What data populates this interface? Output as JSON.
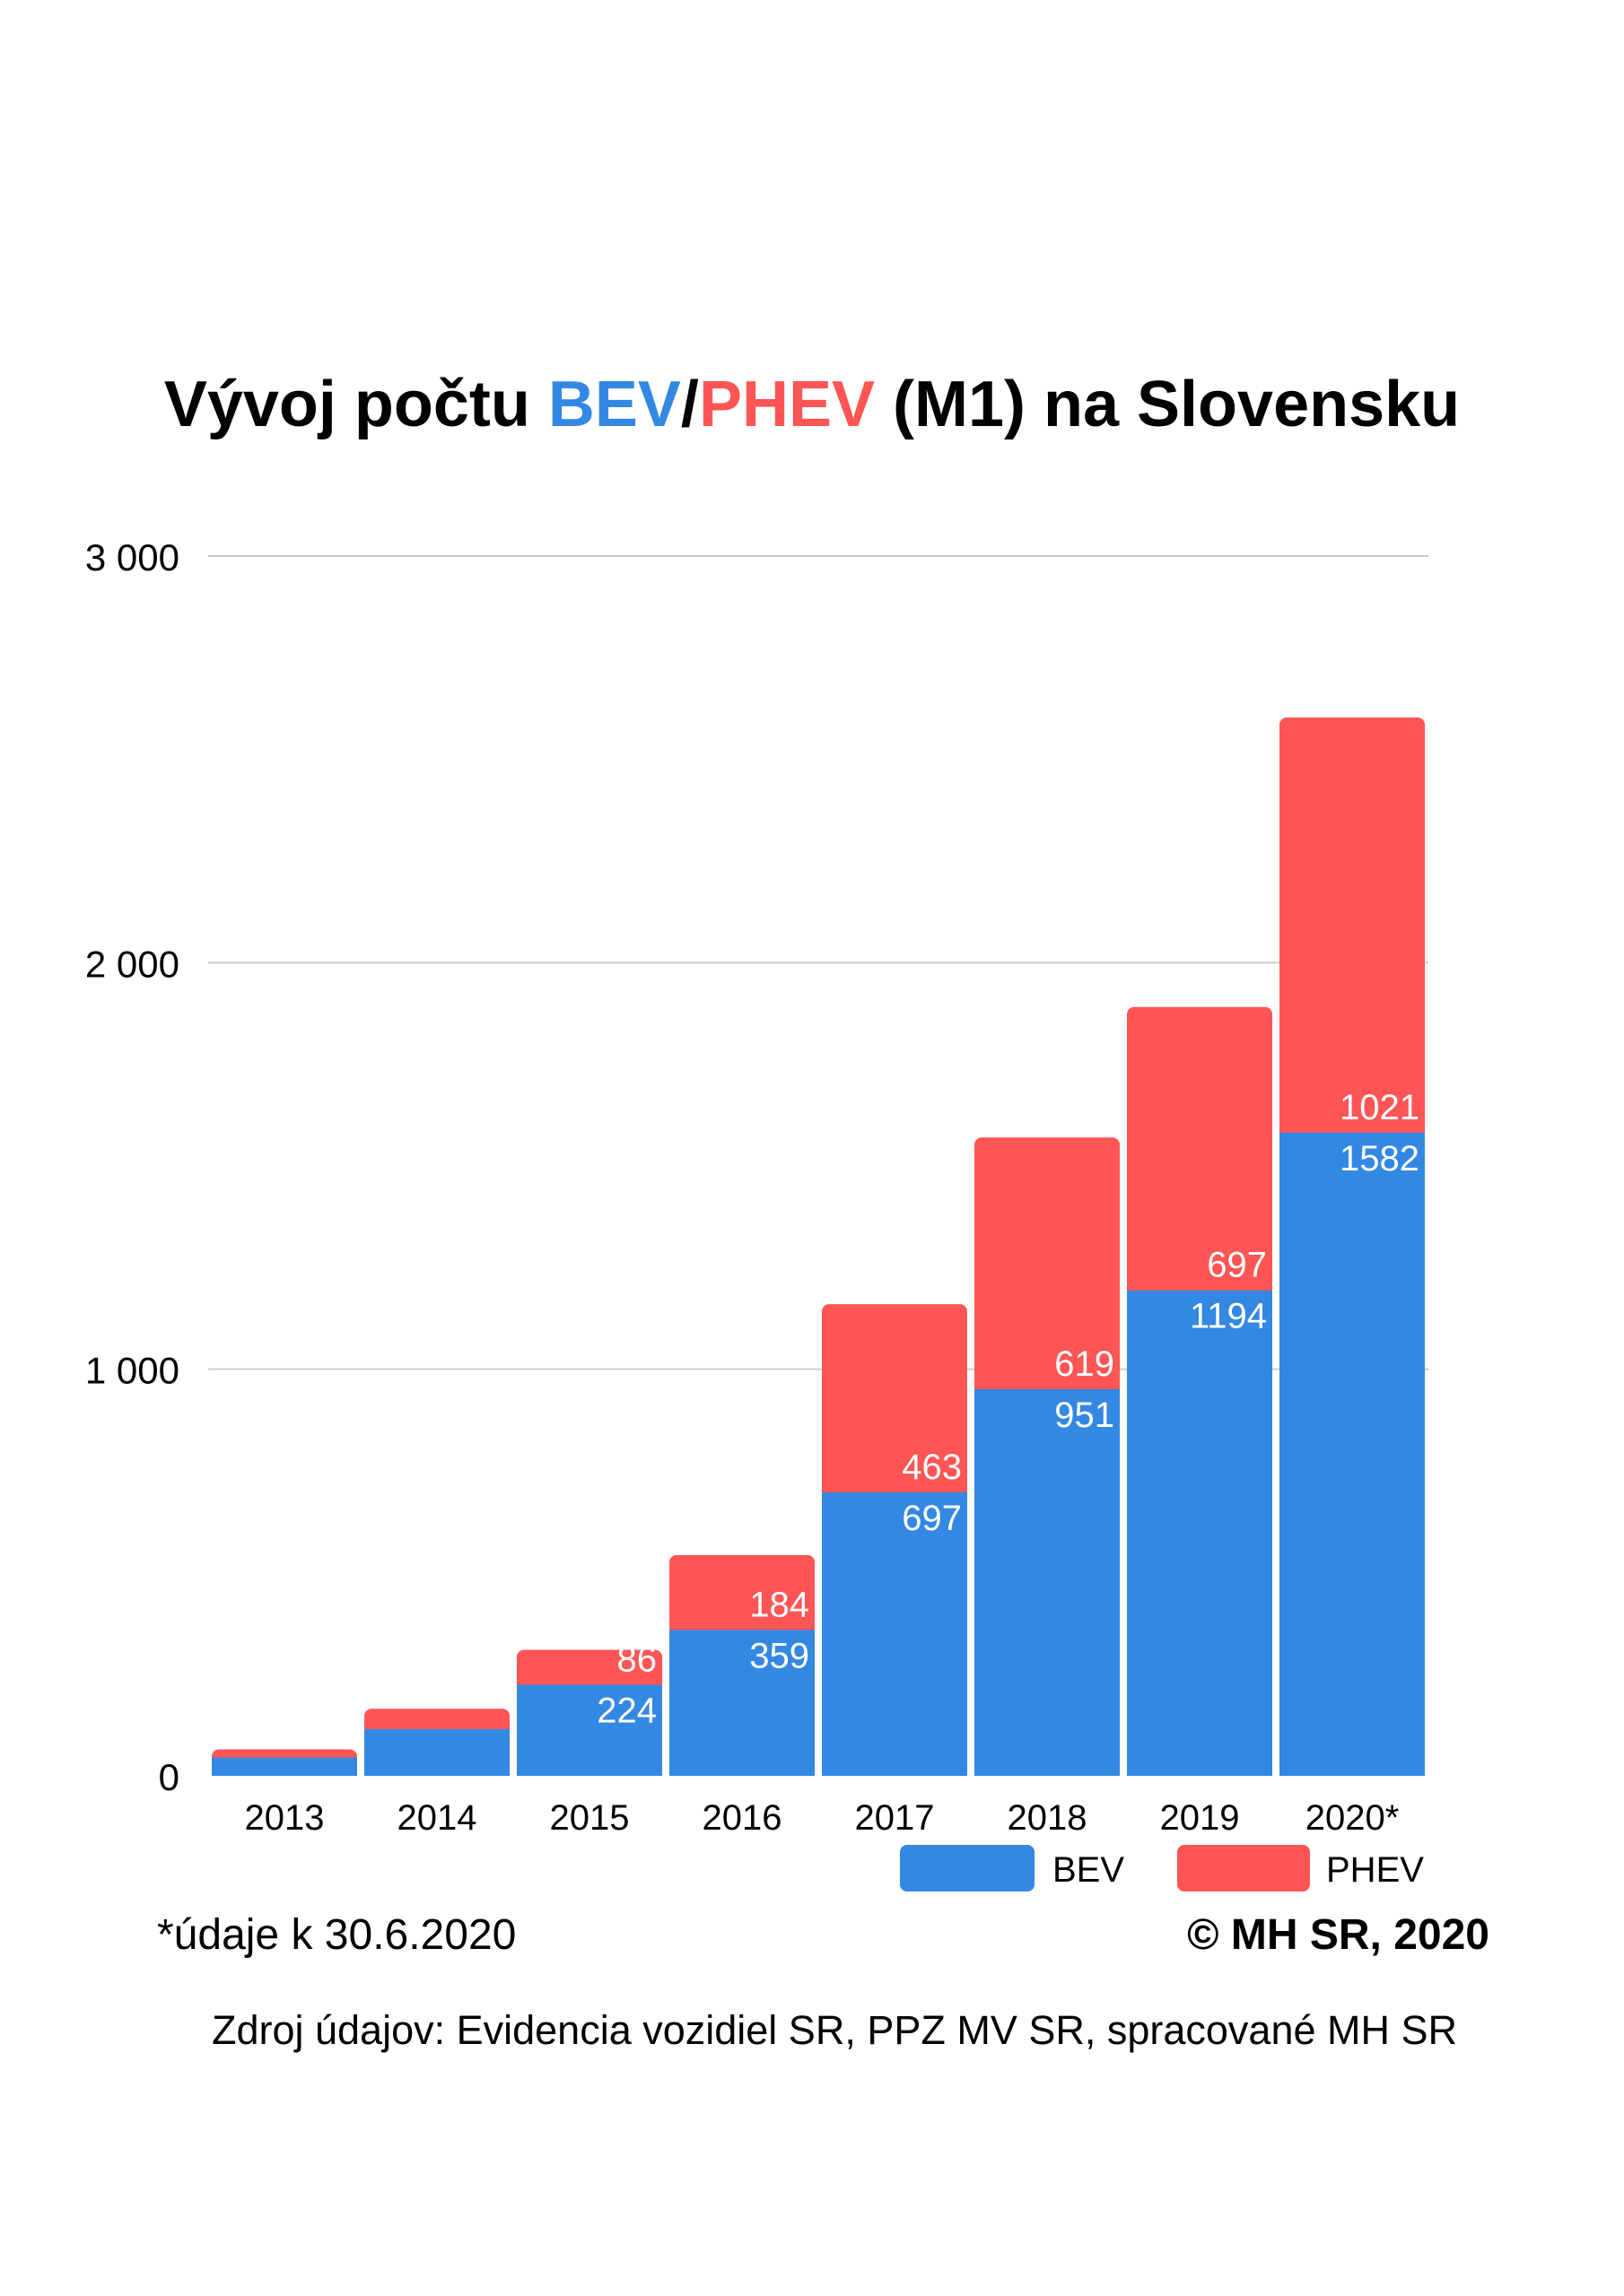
{
  "title": {
    "prefix": "Vývoj počtu ",
    "bev": "BEV",
    "slash": "/",
    "phev": "PHEV",
    "suffix": " (M1) na Slovensku"
  },
  "colors": {
    "bev": "#3388e3",
    "phev": "#ff5555",
    "grid": "#cccccc",
    "text": "#000000",
    "label": "#ffffff"
  },
  "chart_data": {
    "type": "bar",
    "stacked": true,
    "categories": [
      "2013",
      "2014",
      "2015",
      "2016",
      "2017",
      "2018",
      "2019",
      "2020*"
    ],
    "series": [
      {
        "name": "BEV",
        "values": [
          45,
          115,
          224,
          359,
          697,
          951,
          1194,
          1582
        ],
        "labels": [
          "",
          "",
          "224",
          "359",
          "697",
          "951",
          "1194",
          "1582"
        ]
      },
      {
        "name": "PHEV",
        "values": [
          20,
          50,
          86,
          184,
          463,
          619,
          697,
          1021
        ],
        "labels": [
          "",
          "",
          "86",
          "184",
          "463",
          "619",
          "697",
          "1021"
        ]
      }
    ],
    "y_ticks": [
      {
        "value": 0,
        "label": "0"
      },
      {
        "value": 1000,
        "label": "1 000"
      },
      {
        "value": 2000,
        "label": "2 000"
      },
      {
        "value": 3000,
        "label": "3 000"
      }
    ],
    "ylim": [
      0,
      3000
    ],
    "grid": true,
    "legend": {
      "position": "bottom-right",
      "items": [
        "BEV",
        "PHEV"
      ]
    }
  },
  "footnote": "*údaje k 30.6.2020",
  "copyright": "© MH SR, 2020",
  "source": "Zdroj údajov: Evidencia vozidiel SR, PPZ MV SR, spracované MH SR"
}
